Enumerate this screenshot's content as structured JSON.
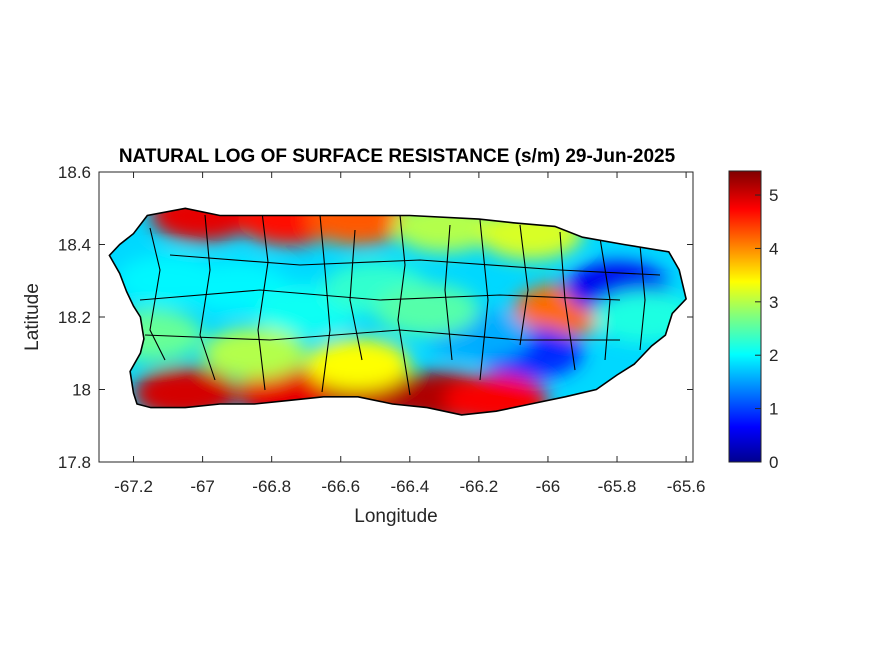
{
  "chart_data": {
    "type": "heatmap",
    "title": "NATURAL LOG OF SURFACE RESISTANCE (s/m) 29-Jun-2025",
    "xlabel": "Longitude",
    "ylabel": "Latitude",
    "xlim": [
      -67.3,
      -65.58
    ],
    "ylim": [
      17.8,
      18.6
    ],
    "xticks": [
      -67.2,
      -67,
      -66.8,
      -66.6,
      -66.4,
      -66.2,
      -66,
      -65.8,
      -65.6
    ],
    "xtick_labels": [
      "-67.2",
      "-67",
      "-66.8",
      "-66.6",
      "-66.4",
      "-66.2",
      "-66",
      "-65.8",
      "-65.6"
    ],
    "yticks": [
      17.8,
      18,
      18.2,
      18.4,
      18.6
    ],
    "ytick_labels": [
      "17.8",
      "18",
      "18.2",
      "18.4",
      "18.6"
    ],
    "colorbar": {
      "range": [
        0,
        5.45
      ],
      "ticks": [
        0,
        1,
        2,
        3,
        4,
        5
      ],
      "tick_labels": [
        "0",
        "1",
        "2",
        "3",
        "4",
        "5"
      ],
      "colormap": "jet"
    },
    "grid": false,
    "island_outline": [
      [
        -67.27,
        18.37
      ],
      [
        -67.24,
        18.4
      ],
      [
        -67.2,
        18.43
      ],
      [
        -67.16,
        18.48
      ],
      [
        -67.05,
        18.5
      ],
      [
        -66.95,
        18.48
      ],
      [
        -66.8,
        18.48
      ],
      [
        -66.6,
        18.48
      ],
      [
        -66.4,
        18.48
      ],
      [
        -66.2,
        18.47
      ],
      [
        -66.1,
        18.46
      ],
      [
        -65.98,
        18.45
      ],
      [
        -65.9,
        18.42
      ],
      [
        -65.78,
        18.4
      ],
      [
        -65.65,
        18.38
      ],
      [
        -65.62,
        18.33
      ],
      [
        -65.6,
        18.25
      ],
      [
        -65.64,
        18.21
      ],
      [
        -65.66,
        18.15
      ],
      [
        -65.7,
        18.12
      ],
      [
        -65.75,
        18.07
      ],
      [
        -65.8,
        18.04
      ],
      [
        -65.86,
        18.0
      ],
      [
        -65.95,
        17.98
      ],
      [
        -66.05,
        17.96
      ],
      [
        -66.15,
        17.94
      ],
      [
        -66.25,
        17.93
      ],
      [
        -66.35,
        17.95
      ],
      [
        -66.45,
        17.96
      ],
      [
        -66.55,
        17.98
      ],
      [
        -66.65,
        17.98
      ],
      [
        -66.75,
        17.97
      ],
      [
        -66.85,
        17.96
      ],
      [
        -66.95,
        17.96
      ],
      [
        -67.05,
        17.95
      ],
      [
        -67.15,
        17.95
      ],
      [
        -67.19,
        17.96
      ],
      [
        -67.2,
        17.99
      ],
      [
        -67.21,
        18.05
      ],
      [
        -67.18,
        18.1
      ],
      [
        -67.17,
        18.14
      ],
      [
        -67.18,
        18.2
      ],
      [
        -67.2,
        18.23
      ],
      [
        -67.22,
        18.27
      ],
      [
        -67.24,
        18.32
      ]
    ],
    "value_regions": [
      {
        "lon": -67.0,
        "lat": 18.48,
        "value": 4.9
      },
      {
        "lon": -66.75,
        "lat": 18.47,
        "value": 4.7
      },
      {
        "lon": -66.55,
        "lat": 18.47,
        "value": 4.3
      },
      {
        "lon": -66.3,
        "lat": 18.45,
        "value": 3.0
      },
      {
        "lon": -66.05,
        "lat": 18.43,
        "value": 3.2
      },
      {
        "lon": -65.95,
        "lat": 18.22,
        "value": 4.2
      },
      {
        "lon": -65.8,
        "lat": 18.28,
        "value": 0.6
      },
      {
        "lon": -66.05,
        "lat": 18.1,
        "value": 0.9
      },
      {
        "lon": -66.2,
        "lat": 18.15,
        "value": 1.6
      },
      {
        "lon": -67.05,
        "lat": 17.99,
        "value": 5.0
      },
      {
        "lon": -66.75,
        "lat": 17.99,
        "value": 4.9
      },
      {
        "lon": -66.5,
        "lat": 17.99,
        "value": 5.1
      },
      {
        "lon": -66.3,
        "lat": 17.98,
        "value": 5.2
      },
      {
        "lon": -66.15,
        "lat": 17.97,
        "value": 4.8
      },
      {
        "lon": -66.9,
        "lat": 18.28,
        "value": 2.0
      },
      {
        "lon": -66.7,
        "lat": 18.22,
        "value": 2.1
      },
      {
        "lon": -66.5,
        "lat": 18.28,
        "value": 2.3
      },
      {
        "lon": -67.1,
        "lat": 18.3,
        "value": 2.0
      },
      {
        "lon": -67.15,
        "lat": 18.15,
        "value": 2.6
      },
      {
        "lon": -66.85,
        "lat": 18.1,
        "value": 3.0
      },
      {
        "lon": -66.55,
        "lat": 18.07,
        "value": 3.4
      },
      {
        "lon": -66.35,
        "lat": 18.22,
        "value": 2.5
      },
      {
        "lon": -65.72,
        "lat": 18.2,
        "value": 2.2
      }
    ]
  }
}
